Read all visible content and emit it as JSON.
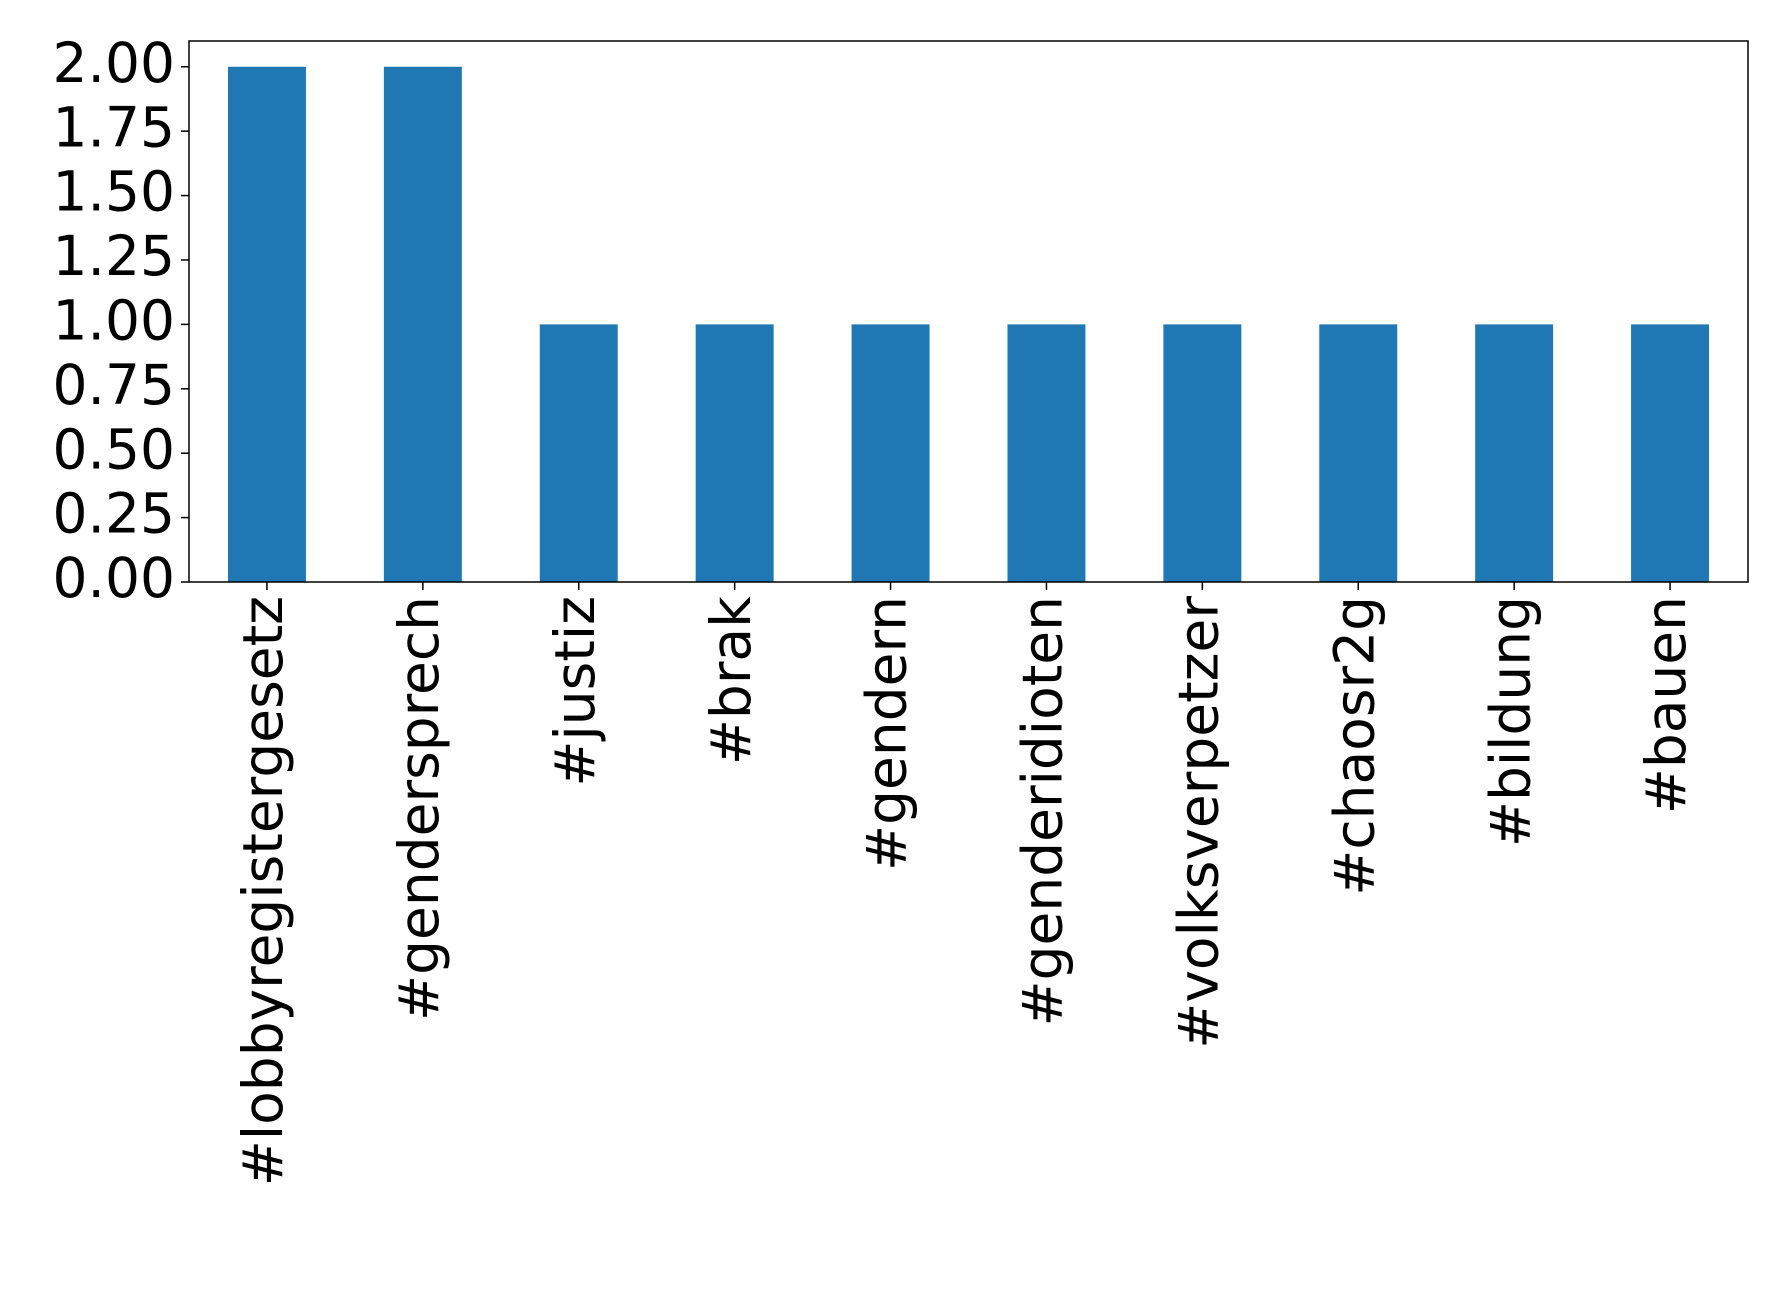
{
  "chart_data": {
    "type": "bar",
    "categories": [
      "#lobbyregistergesetz",
      "#gendersprech",
      "#justiz",
      "#brak",
      "#gendern",
      "#genderidioten",
      "#volksverpetzer",
      "#chaosr2g",
      "#bildung",
      "#bauen"
    ],
    "values": [
      2,
      2,
      1,
      1,
      1,
      1,
      1,
      1,
      1,
      1
    ],
    "color": "#1f77b4",
    "ylim": [
      0,
      2.1
    ],
    "yticks": [
      {
        "value": 0,
        "label": "0.00"
      },
      {
        "value": 0.25,
        "label": "0.25"
      },
      {
        "value": 0.5,
        "label": "0.50"
      },
      {
        "value": 0.75,
        "label": "0.75"
      },
      {
        "value": 1,
        "label": "1.00"
      },
      {
        "value": 1.25,
        "label": "1.25"
      },
      {
        "value": 1.5,
        "label": "1.50"
      },
      {
        "value": 1.75,
        "label": "1.75"
      },
      {
        "value": 2,
        "label": "2.00"
      }
    ],
    "grid": false
  }
}
